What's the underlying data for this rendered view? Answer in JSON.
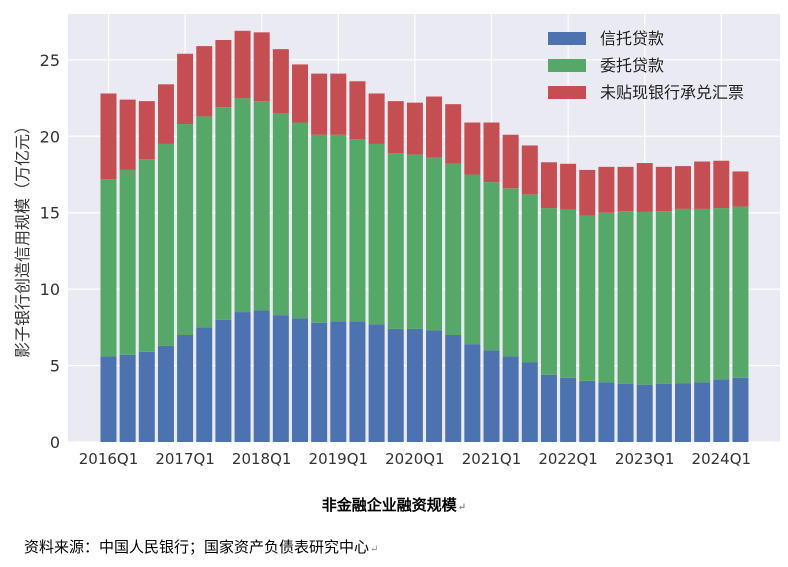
{
  "chart_data": {
    "type": "bar",
    "stacked": true,
    "title": "",
    "xlabel": "",
    "ylabel": "影子银行创造信用规模（万亿元）",
    "ylim": [
      0,
      28
    ],
    "yticks": [
      0,
      5,
      10,
      15,
      20,
      25
    ],
    "grid": true,
    "legend_position": "top-right",
    "categories": [
      "2016Q1",
      "2016Q2",
      "2016Q3",
      "2016Q4",
      "2017Q1",
      "2017Q2",
      "2017Q3",
      "2017Q4",
      "2018Q1",
      "2018Q2",
      "2018Q3",
      "2018Q4",
      "2019Q1",
      "2019Q2",
      "2019Q3",
      "2019Q4",
      "2020Q1",
      "2020Q2",
      "2020Q3",
      "2020Q4",
      "2021Q1",
      "2021Q2",
      "2021Q3",
      "2021Q4",
      "2022Q1",
      "2022Q2",
      "2022Q3",
      "2022Q4",
      "2023Q1",
      "2023Q2",
      "2023Q3",
      "2023Q4",
      "2024Q1",
      "2024Q2"
    ],
    "tick_labels": [
      "2016Q1",
      "2017Q1",
      "2018Q1",
      "2019Q1",
      "2020Q1",
      "2021Q1",
      "2022Q1",
      "2023Q1",
      "2024Q1"
    ],
    "series": [
      {
        "name": "信托贷款",
        "color": "#4c72b0",
        "values": [
          5.6,
          5.7,
          5.9,
          6.3,
          7.0,
          7.5,
          8.0,
          8.5,
          8.6,
          8.3,
          8.1,
          7.8,
          7.9,
          7.9,
          7.7,
          7.4,
          7.4,
          7.3,
          7.0,
          6.4,
          6.0,
          5.6,
          5.2,
          4.4,
          4.2,
          4.0,
          3.9,
          3.8,
          3.75,
          3.8,
          3.85,
          3.9,
          4.1,
          4.2
        ]
      },
      {
        "name": "委托贷款",
        "color": "#55a868",
        "values": [
          11.6,
          12.1,
          12.6,
          13.2,
          13.8,
          13.8,
          13.9,
          14.0,
          13.7,
          13.2,
          12.8,
          12.3,
          12.2,
          11.9,
          11.8,
          11.5,
          11.4,
          11.3,
          11.2,
          11.1,
          11.0,
          11.0,
          11.0,
          10.9,
          11.0,
          10.8,
          11.1,
          11.3,
          11.3,
          11.3,
          11.4,
          11.35,
          11.2,
          11.2
        ]
      },
      {
        "name": "未贴现银行承兑汇票",
        "color": "#c44e52",
        "values": [
          5.6,
          4.6,
          3.8,
          3.9,
          4.6,
          4.6,
          4.4,
          4.4,
          4.5,
          4.2,
          3.8,
          4.0,
          4.0,
          3.8,
          3.3,
          3.4,
          3.4,
          4.0,
          3.9,
          3.4,
          3.9,
          3.5,
          3.2,
          3.0,
          3.0,
          3.0,
          3.0,
          2.9,
          3.2,
          2.9,
          2.8,
          3.1,
          3.1,
          2.3
        ]
      }
    ]
  },
  "caption": "非金融企业融资规模",
  "source": "资料来源：中国人民银行；国家资产负债表研究中心",
  "para_mark": "↵"
}
